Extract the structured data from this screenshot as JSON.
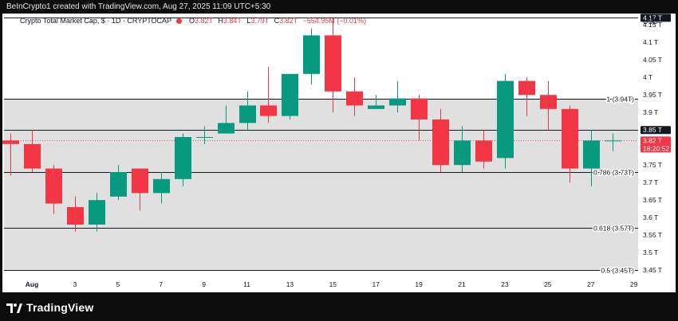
{
  "caption": "BeInCrypto1 created with TradingView.com, Aug 27, 2025 11:09 UTC+5:30",
  "header": {
    "title": "Crypto Total Market Cap, $ · 1D · CRYPTOCAP",
    "o_label": "O",
    "o_value": "3.82T",
    "h_label": "H",
    "h_value": "3.84T",
    "l_label": "L",
    "l_value": "3.79T",
    "c_label": "C",
    "c_value": "3.82T",
    "change": "−554.95M (−0.01%)"
  },
  "currency": "USD",
  "brand": "TradingView",
  "icons": [
    "tradingview-logo-icon",
    "ohlc-status-dot-icon"
  ],
  "colors": {
    "up": "#089981",
    "down": "#f23645",
    "shade": "#e0e0e0",
    "line": "#131722"
  },
  "chart_data": {
    "type": "candlestick",
    "y_unit": "T",
    "ylim": [
      3.43,
      4.18
    ],
    "y_ticks": [
      {
        "value": 4.15,
        "label": "4.15 T"
      },
      {
        "value": 4.1,
        "label": "4.1 T"
      },
      {
        "value": 4.05,
        "label": "4.05 T"
      },
      {
        "value": 4.0,
        "label": "4 T"
      },
      {
        "value": 3.95,
        "label": "3.95 T"
      },
      {
        "value": 3.9,
        "label": "3.9 T"
      },
      {
        "value": 3.75,
        "label": "3.75 T"
      },
      {
        "value": 3.7,
        "label": "3.7 T"
      },
      {
        "value": 3.65,
        "label": "3.65 T"
      },
      {
        "value": 3.6,
        "label": "3.6 T"
      },
      {
        "value": 3.55,
        "label": "3.55 T"
      },
      {
        "value": 3.5,
        "label": "3.5 T"
      },
      {
        "value": 3.45,
        "label": "3.45 T"
      }
    ],
    "x_ticks": [
      {
        "day": 1,
        "label": "Aug"
      },
      {
        "day": 3,
        "label": "3"
      },
      {
        "day": 5,
        "label": "5"
      },
      {
        "day": 7,
        "label": "7"
      },
      {
        "day": 9,
        "label": "9"
      },
      {
        "day": 11,
        "label": "11"
      },
      {
        "day": 13,
        "label": "13"
      },
      {
        "day": 15,
        "label": "15"
      },
      {
        "day": 17,
        "label": "17"
      },
      {
        "day": 19,
        "label": "19"
      },
      {
        "day": 21,
        "label": "21"
      },
      {
        "day": 23,
        "label": "23"
      },
      {
        "day": 25,
        "label": "25"
      },
      {
        "day": 27,
        "label": "27"
      },
      {
        "day": 29,
        "label": "29"
      }
    ],
    "x_range": [
      -0.3,
      29.2
    ],
    "candles": [
      {
        "day": 0,
        "o": 3.82,
        "h": 3.84,
        "l": 3.72,
        "c": 3.81
      },
      {
        "day": 1,
        "o": 3.81,
        "h": 3.85,
        "l": 3.73,
        "c": 3.74
      },
      {
        "day": 2,
        "o": 3.74,
        "h": 3.75,
        "l": 3.61,
        "c": 3.64
      },
      {
        "day": 3,
        "o": 3.63,
        "h": 3.66,
        "l": 3.56,
        "c": 3.58
      },
      {
        "day": 4,
        "o": 3.58,
        "h": 3.67,
        "l": 3.56,
        "c": 3.65
      },
      {
        "day": 5,
        "o": 3.66,
        "h": 3.75,
        "l": 3.65,
        "c": 3.73
      },
      {
        "day": 6,
        "o": 3.74,
        "h": 3.74,
        "l": 3.62,
        "c": 3.67
      },
      {
        "day": 7,
        "o": 3.67,
        "h": 3.73,
        "l": 3.64,
        "c": 3.71
      },
      {
        "day": 8,
        "o": 3.71,
        "h": 3.84,
        "l": 3.69,
        "c": 3.83
      },
      {
        "day": 9,
        "o": 3.83,
        "h": 3.86,
        "l": 3.81,
        "c": 3.83
      },
      {
        "day": 10,
        "o": 3.84,
        "h": 3.92,
        "l": 3.84,
        "c": 3.87
      },
      {
        "day": 11,
        "o": 3.87,
        "h": 3.96,
        "l": 3.85,
        "c": 3.92
      },
      {
        "day": 12,
        "o": 3.92,
        "h": 4.03,
        "l": 3.87,
        "c": 3.89
      },
      {
        "day": 13,
        "o": 3.89,
        "h": 4.01,
        "l": 3.88,
        "c": 4.01
      },
      {
        "day": 14,
        "o": 4.01,
        "h": 4.14,
        "l": 3.98,
        "c": 4.12
      },
      {
        "day": 15,
        "o": 4.12,
        "h": 4.17,
        "l": 3.9,
        "c": 3.96
      },
      {
        "day": 16,
        "o": 3.96,
        "h": 4.0,
        "l": 3.89,
        "c": 3.92
      },
      {
        "day": 17,
        "o": 3.91,
        "h": 3.95,
        "l": 3.91,
        "c": 3.92
      },
      {
        "day": 18,
        "o": 3.92,
        "h": 3.99,
        "l": 3.9,
        "c": 3.94
      },
      {
        "day": 19,
        "o": 3.94,
        "h": 3.95,
        "l": 3.82,
        "c": 3.88
      },
      {
        "day": 20,
        "o": 3.88,
        "h": 3.91,
        "l": 3.73,
        "c": 3.75
      },
      {
        "day": 21,
        "o": 3.75,
        "h": 3.86,
        "l": 3.73,
        "c": 3.82
      },
      {
        "day": 22,
        "o": 3.82,
        "h": 3.85,
        "l": 3.74,
        "c": 3.76
      },
      {
        "day": 23,
        "o": 3.77,
        "h": 4.01,
        "l": 3.74,
        "c": 3.99
      },
      {
        "day": 24,
        "o": 3.99,
        "h": 4.0,
        "l": 3.89,
        "c": 3.95
      },
      {
        "day": 25,
        "o": 3.95,
        "h": 3.99,
        "l": 3.85,
        "c": 3.91
      },
      {
        "day": 26,
        "o": 3.91,
        "h": 3.92,
        "l": 3.7,
        "c": 3.74
      },
      {
        "day": 27,
        "o": 3.74,
        "h": 3.85,
        "l": 3.69,
        "c": 3.82
      },
      {
        "day": 28,
        "o": 3.82,
        "h": 3.84,
        "l": 3.79,
        "c": 3.82
      }
    ],
    "levels": [
      {
        "value": 4.17,
        "label": ""
      },
      {
        "value": 3.94,
        "label": "1 (3.94T)"
      },
      {
        "value": 3.85,
        "label": ""
      },
      {
        "value": 3.73,
        "label": "0.786 (3.73T)"
      },
      {
        "value": 3.57,
        "label": "0.618 (3.57T)"
      },
      {
        "value": 3.45,
        "label": "0.5 (3.45T)"
      }
    ],
    "shaded_band": [
      3.45,
      3.94
    ],
    "price_tags": [
      {
        "value": 4.17,
        "label": "4.17 T",
        "style": "dark"
      },
      {
        "value": 3.85,
        "label": "3.85 T",
        "style": "dark"
      },
      {
        "value": 3.82,
        "label": "3.82 T",
        "sub": "18:20:52",
        "style": "red"
      }
    ],
    "last_price": 3.82,
    "grid": false
  }
}
